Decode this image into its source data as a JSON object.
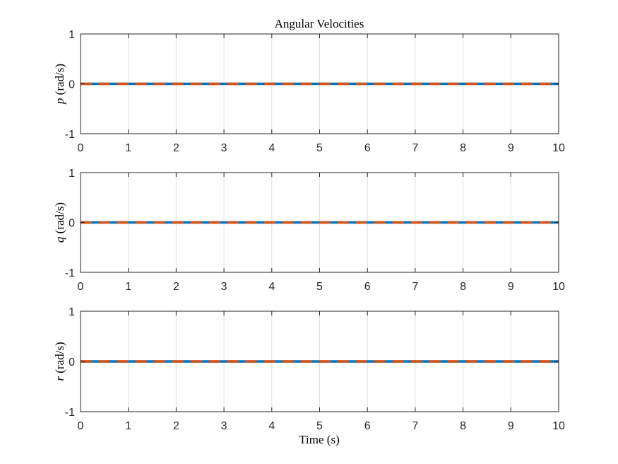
{
  "chart_data": {
    "type": "line",
    "title": "Angular Velocities",
    "xlabel": "Time (s)",
    "grid": "vertical",
    "colors": {
      "series_blue": "#0072BD",
      "series_orange": "#D95319",
      "axis": "#262626",
      "grid": "#DFDFDF"
    },
    "subplots": [
      {
        "ylabel_var": "p",
        "ylabel_unit": "(rad/s)",
        "xlim": [
          0,
          10
        ],
        "ylim": [
          -1,
          1
        ],
        "xticks": [
          "0",
          "1",
          "2",
          "3",
          "4",
          "5",
          "6",
          "7",
          "8",
          "9",
          "10"
        ],
        "yticks": [
          "-1",
          "0",
          "1"
        ],
        "series": [
          {
            "color": "#0072BD",
            "style": "solid",
            "x": [
              0,
              10
            ],
            "y": [
              0,
              0
            ]
          },
          {
            "color": "#D95319",
            "style": "dashed",
            "x": [
              0,
              10
            ],
            "y": [
              0,
              0
            ]
          }
        ]
      },
      {
        "ylabel_var": "q",
        "ylabel_unit": "(rad/s)",
        "xlim": [
          0,
          10
        ],
        "ylim": [
          -1,
          1
        ],
        "xticks": [
          "0",
          "1",
          "2",
          "3",
          "4",
          "5",
          "6",
          "7",
          "8",
          "9",
          "10"
        ],
        "yticks": [
          "-1",
          "0",
          "1"
        ],
        "series": [
          {
            "color": "#0072BD",
            "style": "solid",
            "x": [
              0,
              10
            ],
            "y": [
              0,
              0
            ]
          },
          {
            "color": "#D95319",
            "style": "dashed",
            "x": [
              0,
              10
            ],
            "y": [
              0,
              0
            ]
          }
        ]
      },
      {
        "ylabel_var": "r",
        "ylabel_unit": "(rad/s)",
        "xlim": [
          0,
          10
        ],
        "ylim": [
          -1,
          1
        ],
        "xticks": [
          "0",
          "1",
          "2",
          "3",
          "4",
          "5",
          "6",
          "7",
          "8",
          "9",
          "10"
        ],
        "yticks": [
          "-1",
          "0",
          "1"
        ],
        "series": [
          {
            "color": "#0072BD",
            "style": "solid",
            "x": [
              0,
              10
            ],
            "y": [
              0,
              0
            ]
          },
          {
            "color": "#D95319",
            "style": "dashed",
            "x": [
              0,
              10
            ],
            "y": [
              0,
              0
            ]
          }
        ]
      }
    ]
  }
}
